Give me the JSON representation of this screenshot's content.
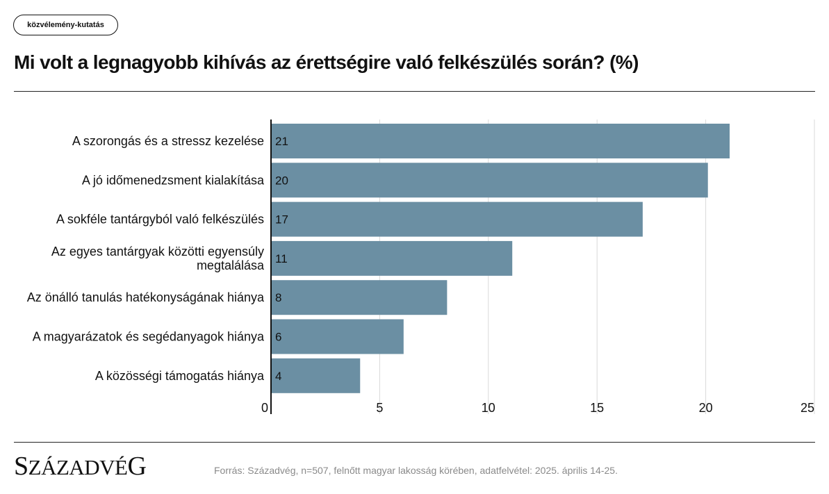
{
  "tag": "közvélemény-kutatás",
  "title": "Mi volt a legnagyobb kihívás az érettségire való felkészülés során? (%)",
  "logo": {
    "first": "S",
    "rest": "ZÁZADVÉ",
    "last": "G"
  },
  "source": "Forrás: Századvég, n=507, felnőtt magyar lakosság körében, adatfelvétel: 2025. április 14-25.",
  "colors": {
    "bar": "#6b8fa3",
    "grid": "#d9d9d9",
    "axis": "#111111"
  },
  "chart_data": {
    "type": "bar",
    "orientation": "horizontal",
    "categories": [
      [
        "A szorongás és a stressz kezelése"
      ],
      [
        "A jó időmenedzsment kialakítása"
      ],
      [
        "A sokféle tantárgyból való felkészülés"
      ],
      [
        "Az egyes tantárgyak közötti egyensúly",
        "megtalálása"
      ],
      [
        "Az önálló tanulás hatékonyságának hiánya"
      ],
      [
        "A magyarázatok és segédanyagok hiánya"
      ],
      [
        "A közösségi támogatás hiánya"
      ]
    ],
    "values": [
      21,
      20,
      17,
      11,
      8,
      6,
      4
    ],
    "bar_extent": [
      21.1,
      20.1,
      17.1,
      11.1,
      8.1,
      6.1,
      4.1
    ],
    "xlim": [
      0,
      25
    ],
    "xticks": [
      0,
      5,
      10,
      15,
      20,
      25
    ],
    "grid": true,
    "legend": "none"
  }
}
